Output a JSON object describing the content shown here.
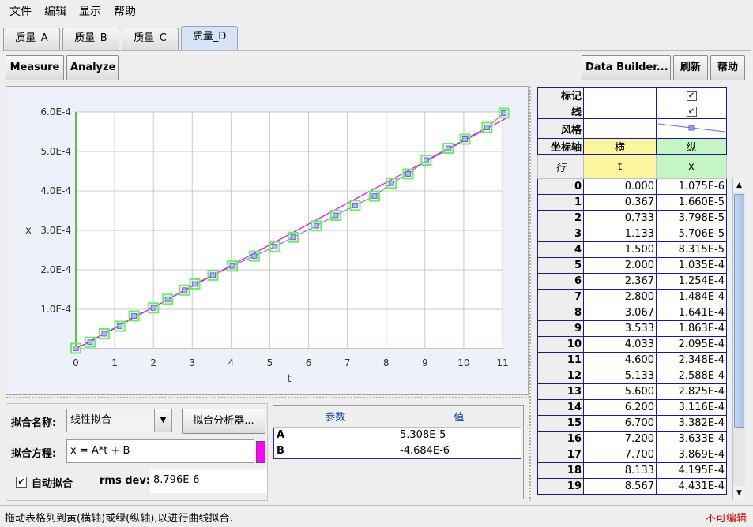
{
  "menu": {
    "items": [
      "文件",
      "编辑",
      "显示",
      "帮助"
    ]
  },
  "tabs": [
    {
      "label": "质量_A",
      "active": false
    },
    {
      "label": "质量_B",
      "active": false
    },
    {
      "label": "质量_C",
      "active": false
    },
    {
      "label": "质量_D",
      "active": true
    }
  ],
  "toolbar": {
    "measure": "Measure",
    "analyze": "Analyze",
    "data_builder": "Data Builder...",
    "refresh": "刷新",
    "help": "帮助"
  },
  "chart_data": {
    "type": "scatter",
    "xlabel": "t",
    "ylabel": "x",
    "xlim": [
      0,
      11
    ],
    "ylim": [
      0,
      0.0006
    ],
    "x_ticks": [
      "0",
      "1",
      "2",
      "3",
      "4",
      "5",
      "6",
      "7",
      "8",
      "9",
      "10",
      "11"
    ],
    "y_ticks": [
      "1.0E-4",
      "2.0E-4",
      "3.0E-4",
      "4.0E-4",
      "5.0E-4",
      "6.0E-4"
    ],
    "grid": true,
    "series": [
      {
        "x": [
          0.0,
          0.367,
          0.733,
          1.133,
          1.5,
          2.0,
          2.367,
          2.8,
          3.067,
          3.533,
          4.033,
          4.6,
          5.133,
          5.6,
          6.2,
          6.7,
          7.2,
          7.7,
          8.133,
          8.567,
          9.033,
          9.6,
          10.033,
          10.6,
          11.033
        ],
        "y": [
          1.075e-06,
          1.66e-05,
          3.798e-05,
          5.706e-05,
          8.315e-05,
          0.0001035,
          0.0001254,
          0.0001484,
          0.0001641,
          0.0001863,
          0.0002095,
          0.0002348,
          0.0002588,
          0.0002825,
          0.0003116,
          0.0003382,
          0.0003633,
          0.0003869,
          0.0004195,
          0.0004431,
          0.000478,
          0.000508,
          0.000531,
          0.000561,
          0.000597
        ],
        "color": "#6a6acc",
        "marker_highlight": "#66ee66"
      }
    ],
    "fit_line": {
      "A": 5.308e-05,
      "B": -4.684e-06,
      "color": "#ee00ee"
    }
  },
  "table_props": {
    "rows": [
      {
        "label": "标记",
        "col_t": "",
        "col_x": "check"
      },
      {
        "label": "线",
        "col_t": "",
        "col_x": "check"
      },
      {
        "label": "风格",
        "col_t": "",
        "col_x": "line"
      },
      {
        "label": "坐标轴",
        "col_t": "横",
        "col_x": "纵"
      }
    ]
  },
  "data_table": {
    "headers": {
      "row": "行",
      "t": "t",
      "x": "x"
    },
    "rows": [
      {
        "i": "0",
        "t": "0.000",
        "x": "1.075E-6"
      },
      {
        "i": "1",
        "t": "0.367",
        "x": "1.660E-5"
      },
      {
        "i": "2",
        "t": "0.733",
        "x": "3.798E-5"
      },
      {
        "i": "3",
        "t": "1.133",
        "x": "5.706E-5"
      },
      {
        "i": "4",
        "t": "1.500",
        "x": "8.315E-5"
      },
      {
        "i": "5",
        "t": "2.000",
        "x": "1.035E-4"
      },
      {
        "i": "6",
        "t": "2.367",
        "x": "1.254E-4"
      },
      {
        "i": "7",
        "t": "2.800",
        "x": "1.484E-4"
      },
      {
        "i": "8",
        "t": "3.067",
        "x": "1.641E-4"
      },
      {
        "i": "9",
        "t": "3.533",
        "x": "1.863E-4"
      },
      {
        "i": "10",
        "t": "4.033",
        "x": "2.095E-4"
      },
      {
        "i": "11",
        "t": "4.600",
        "x": "2.348E-4"
      },
      {
        "i": "12",
        "t": "5.133",
        "x": "2.588E-4"
      },
      {
        "i": "13",
        "t": "5.600",
        "x": "2.825E-4"
      },
      {
        "i": "14",
        "t": "6.200",
        "x": "3.116E-4"
      },
      {
        "i": "15",
        "t": "6.700",
        "x": "3.382E-4"
      },
      {
        "i": "16",
        "t": "7.200",
        "x": "3.633E-4"
      },
      {
        "i": "17",
        "t": "7.700",
        "x": "3.869E-4"
      },
      {
        "i": "18",
        "t": "8.133",
        "x": "4.195E-4"
      },
      {
        "i": "19",
        "t": "8.567",
        "x": "4.431E-4"
      }
    ]
  },
  "fit": {
    "name_label": "拟合名称:",
    "name_value": "线性拟合",
    "analyzer_button": "拟合分析器...",
    "equation_label": "拟合方程:",
    "equation_value": "x = A*t + B",
    "auto_fit_label": "自动拟合",
    "auto_fit_checked": true,
    "rms_label": "rms dev:",
    "rms_value": "8.796E-6",
    "swatch_color": "#ff00ff"
  },
  "params": {
    "headers": {
      "param": "参数",
      "value": "值"
    },
    "rows": [
      {
        "name": "A",
        "value": "5.308E-5"
      },
      {
        "name": "B",
        "value": "-4.684E-6"
      }
    ]
  },
  "status": {
    "message": "拖动表格列到黄(横轴)或绿(纵轴),以进行曲线拟合.",
    "edit_state": "不可编辑"
  },
  "colors": {
    "yellow_axis": "#fbf5a0",
    "green_axis": "#c5f5c5",
    "status_red": "#cc0000",
    "accent": "#1c3fa8"
  }
}
